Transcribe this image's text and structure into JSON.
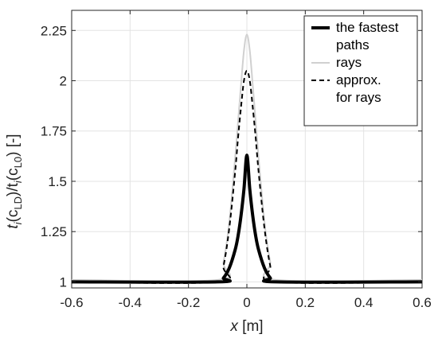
{
  "chart_data": {
    "type": "line",
    "title": "",
    "xlabel": {
      "var": "x",
      "unit": " [m]"
    },
    "ylabel": {
      "t1": "t",
      "s1": "i",
      "p1": "(c",
      "s2": "LD",
      "p2": ")/t",
      "s3": "i",
      "p3": "(c",
      "s4": "L0",
      "p4": ") [-]"
    },
    "xlim": [
      -0.6,
      0.6
    ],
    "ylim": [
      0.97,
      2.35
    ],
    "xticks": [
      -0.6,
      -0.4,
      -0.2,
      0,
      0.2,
      0.4,
      0.6
    ],
    "xtick_labels": [
      "-0.6",
      "-0.4",
      "-0.2",
      "0",
      "0.2",
      "0.4",
      "0.6"
    ],
    "yticks": [
      1,
      1.25,
      1.5,
      1.75,
      2,
      2.25
    ],
    "ytick_labels": [
      "1",
      "1.25",
      "1.5",
      "1.75",
      "2",
      "2.25"
    ],
    "grid": true,
    "legend_position": "top-right",
    "series": [
      {
        "name": "the fastest paths",
        "name_lines": [
          "the fastest",
          "paths"
        ],
        "color": "#000000",
        "style": "solid-thick",
        "x": [
          -0.6,
          -0.1,
          -0.08,
          -0.06,
          -0.04,
          -0.03,
          -0.02,
          -0.01,
          0,
          0.01,
          0.02,
          0.03,
          0.04,
          0.06,
          0.08,
          0.1,
          0.6
        ],
        "y": [
          1,
          1,
          1.02,
          1.07,
          1.16,
          1.23,
          1.33,
          1.46,
          1.63,
          1.46,
          1.33,
          1.23,
          1.16,
          1.07,
          1.02,
          1,
          1
        ]
      },
      {
        "name": "rays",
        "name_lines": [
          "rays"
        ],
        "color": "#d0d0d0",
        "style": "solid",
        "x": [
          -0.6,
          -0.1,
          -0.08,
          -0.06,
          -0.04,
          -0.03,
          -0.02,
          -0.01,
          0,
          0.01,
          0.02,
          0.03,
          0.04,
          0.06,
          0.08,
          0.1,
          0.6
        ],
        "y": [
          1.01,
          1.01,
          1.1,
          1.3,
          1.62,
          1.8,
          1.98,
          2.15,
          2.23,
          2.15,
          1.98,
          1.8,
          1.62,
          1.3,
          1.1,
          1.01,
          1.01
        ]
      },
      {
        "name": "approx. for rays",
        "name_lines": [
          "approx.",
          "for rays"
        ],
        "color": "#000000",
        "style": "dashed",
        "x": [
          -0.6,
          -0.1,
          -0.08,
          -0.06,
          -0.04,
          -0.03,
          -0.02,
          -0.01,
          0,
          0.01,
          0.02,
          0.03,
          0.04,
          0.06,
          0.08,
          0.1,
          0.6
        ],
        "y": [
          1,
          1,
          1.08,
          1.27,
          1.55,
          1.72,
          1.87,
          2.0,
          2.05,
          2.0,
          1.87,
          1.72,
          1.55,
          1.27,
          1.08,
          1,
          1
        ]
      }
    ]
  }
}
